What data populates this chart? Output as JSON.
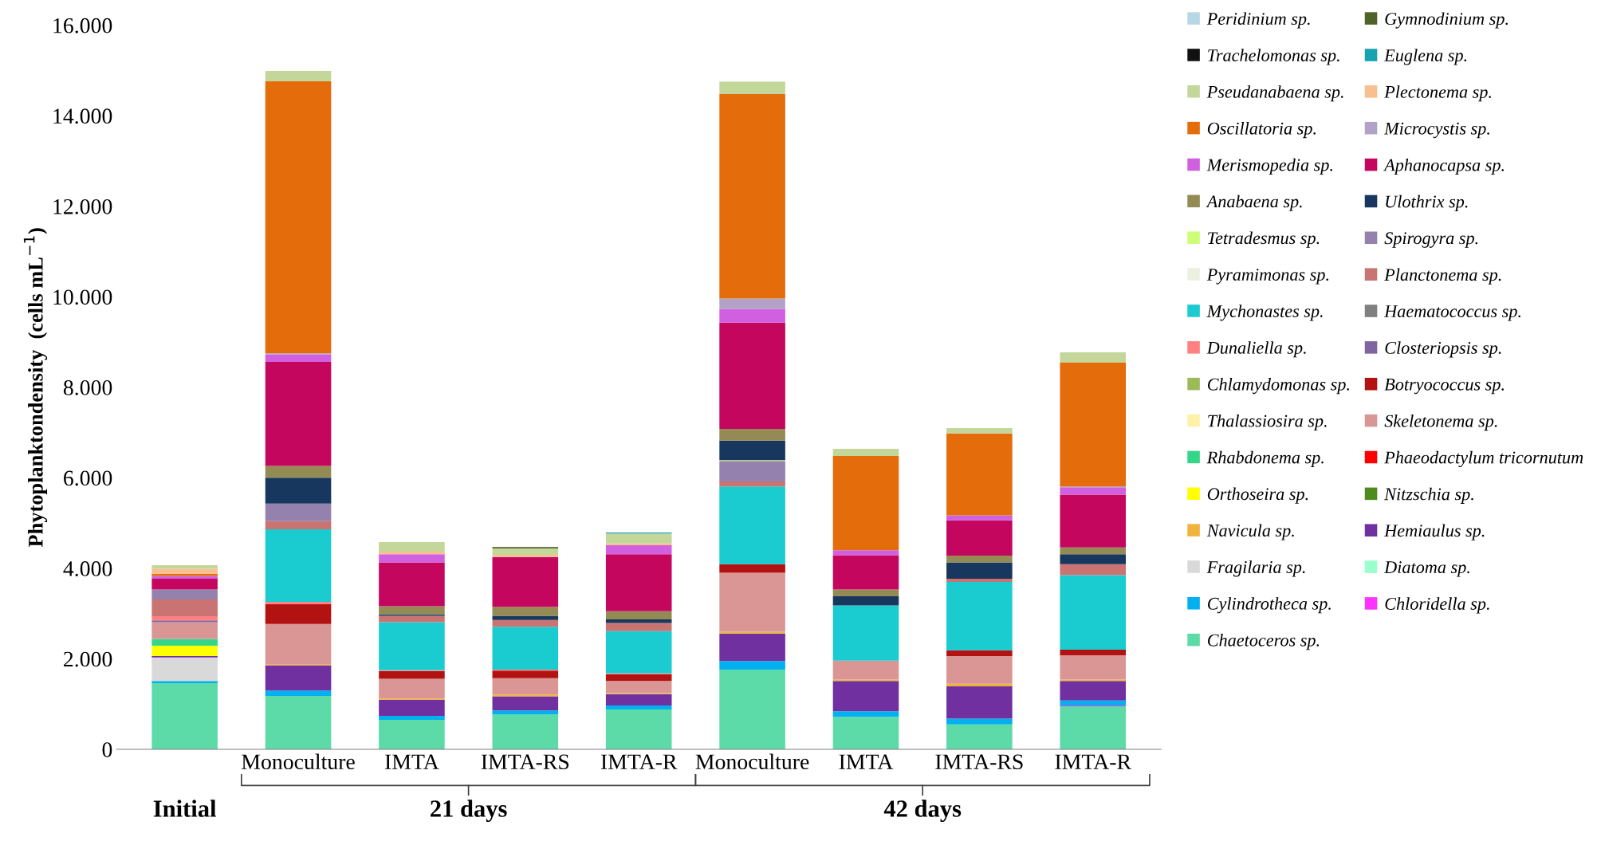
{
  "chart_data": {
    "type": "bar",
    "stacked": true,
    "categories": [
      null,
      "Monoculture",
      "IMTA",
      "IMTA-RS",
      "IMTA-R",
      "Monoculture",
      "IMTA",
      "IMTA-RS",
      "IMTA-R"
    ],
    "ylabel": "Phytoplanktondensity  (cells mL$^{−1}$)",
    "ylim": [
      0,
      16000
    ],
    "yticks": [
      0,
      {
        "value": 2000,
        "label": "2.000"
      },
      {
        "value": 4000,
        "label": "4.000"
      },
      {
        "value": 6000,
        "label": "6.000"
      },
      {
        "value": 8000,
        "label": "8.000"
      },
      {
        "value": 10000,
        "label": "10.000"
      },
      {
        "value": 12000,
        "label": "12.000"
      },
      {
        "value": 14000,
        "label": "14.000"
      },
      {
        "value": 16000,
        "label": "16.000"
      }
    ],
    "annotations": [
      "Initial",
      "21 days",
      "42 days"
    ],
    "grid": false,
    "legend": "right",
    "series": [
      {
        "name": "Chaetoceros sp.",
        "color": "#5cdba8",
        "values": [
          1460,
          1180,
          650,
          770,
          880,
          1760,
          720,
          550,
          950
        ]
      },
      {
        "name": "Chloridella sp.",
        "color": "#ff33ff",
        "values": [
          0,
          0,
          0,
          0,
          0,
          0,
          0,
          0,
          20
        ]
      },
      {
        "name": "Cylindrotheca sp.",
        "color": "#00b0f0",
        "values": [
          50,
          120,
          90,
          90,
          90,
          190,
          120,
          130,
          110
        ]
      },
      {
        "name": "Diatoma sp.",
        "color": "#99ffcc",
        "values": [
          0,
          0,
          0,
          0,
          0,
          0,
          0,
          0,
          0
        ]
      },
      {
        "name": "Fragilaria sp.",
        "color": "#d9d9d9",
        "values": [
          520,
          0,
          0,
          0,
          0,
          0,
          0,
          0,
          0
        ]
      },
      {
        "name": "Hemiaulus sp.",
        "color": "#7030a0",
        "values": [
          30,
          550,
          350,
          310,
          250,
          610,
          670,
          710,
          430
        ]
      },
      {
        "name": "Navicula sp.",
        "color": "#f0b43c",
        "values": [
          0,
          20,
          30,
          40,
          20,
          40,
          30,
          60,
          30
        ]
      },
      {
        "name": "Nitzschia sp.",
        "color": "#4f8a1e",
        "values": [
          0,
          0,
          0,
          0,
          0,
          0,
          0,
          0,
          0
        ]
      },
      {
        "name": "Orthoseira sp.",
        "color": "#ffff00",
        "values": [
          230,
          0,
          0,
          0,
          0,
          0,
          0,
          0,
          0
        ]
      },
      {
        "name": "Phaeodactylum tricornutum",
        "color": "#ff0000",
        "values": [
          0,
          0,
          0,
          0,
          0,
          0,
          0,
          0,
          0
        ]
      },
      {
        "name": "Rhabdonema sp.",
        "color": "#35d68a",
        "values": [
          150,
          0,
          0,
          0,
          0,
          0,
          0,
          0,
          0
        ]
      },
      {
        "name": "Skeletonema sp.",
        "color": "#da9694",
        "values": [
          370,
          900,
          440,
          360,
          270,
          1300,
          420,
          610,
          540
        ]
      },
      {
        "name": "Thalassiosira sp.",
        "color": "#fff2a8",
        "values": [
          0,
          0,
          0,
          0,
          0,
          0,
          0,
          0,
          0
        ]
      },
      {
        "name": "Botryococcus sp.",
        "color": "#b31212",
        "values": [
          0,
          440,
          170,
          170,
          150,
          190,
          0,
          130,
          120
        ]
      },
      {
        "name": "Chlamydomonas sp.",
        "color": "#9bbb59",
        "values": [
          0,
          0,
          0,
          0,
          0,
          0,
          0,
          0,
          0
        ]
      },
      {
        "name": "Closteriopsis sp.",
        "color": "#8064a2",
        "values": [
          40,
          0,
          0,
          0,
          0,
          0,
          0,
          0,
          0
        ]
      },
      {
        "name": "Dunaliella sp.",
        "color": "#ff8080",
        "values": [
          90,
          50,
          20,
          20,
          20,
          0,
          0,
          0,
          0
        ]
      },
      {
        "name": "Haematococcus sp.",
        "color": "#808080",
        "values": [
          0,
          0,
          0,
          0,
          0,
          0,
          0,
          0,
          0
        ]
      },
      {
        "name": "Mychonastes sp.",
        "color": "#1acbd0",
        "values": [
          0,
          1600,
          1060,
          950,
          930,
          1720,
          1220,
          1510,
          1650
        ]
      },
      {
        "name": "Planctonema sp.",
        "color": "#c97372",
        "values": [
          370,
          180,
          140,
          150,
          180,
          110,
          0,
          70,
          240
        ]
      },
      {
        "name": "Pyramimonas sp.",
        "color": "#ebf1de",
        "values": [
          0,
          0,
          0,
          0,
          0,
          0,
          0,
          0,
          0
        ]
      },
      {
        "name": "Spirogyra sp.",
        "color": "#9481ad",
        "values": [
          220,
          390,
          0,
          0,
          0,
          450,
          0,
          0,
          0
        ]
      },
      {
        "name": "Tetradesmus sp.",
        "color": "#ccff77",
        "values": [
          0,
          0,
          0,
          0,
          0,
          20,
          0,
          0,
          0
        ]
      },
      {
        "name": "Ulothrix sp.",
        "color": "#17375e",
        "values": [
          0,
          570,
          30,
          90,
          80,
          430,
          200,
          360,
          220
        ]
      },
      {
        "name": "Anabaena sp.",
        "color": "#948a54",
        "values": [
          0,
          260,
          180,
          200,
          180,
          260,
          150,
          150,
          150
        ]
      },
      {
        "name": "Aphanocapsa sp.",
        "color": "#c4065f",
        "values": [
          240,
          2300,
          970,
          1100,
          1260,
          2350,
          760,
          780,
          1170
        ]
      },
      {
        "name": "Merismopedia sp.",
        "color": "#d060e0",
        "values": [
          60,
          170,
          180,
          0,
          200,
          300,
          110,
          110,
          160
        ]
      },
      {
        "name": "Microcystis sp.",
        "color": "#b3a2c7",
        "values": [
          0,
          20,
          0,
          0,
          0,
          230,
          0,
          0,
          20
        ]
      },
      {
        "name": "Oscillatoria sp.",
        "color": "#e46c0a",
        "values": [
          50,
          6010,
          0,
          0,
          0,
          4520,
          2080,
          1810,
          2740
        ]
      },
      {
        "name": "Plectonema sp.",
        "color": "#fabf8f",
        "values": [
          110,
          0,
          60,
          50,
          40,
          0,
          0,
          0,
          0
        ]
      },
      {
        "name": "Pseudanabaena sp.",
        "color": "#c4d79b",
        "values": [
          80,
          230,
          210,
          140,
          220,
          270,
          160,
          120,
          220
        ]
      },
      {
        "name": "Euglena sp.",
        "color": "#17a2b0",
        "values": [
          0,
          0,
          0,
          0,
          20,
          0,
          0,
          0,
          0
        ]
      },
      {
        "name": "Trachelomonas sp.",
        "color": "#111111",
        "values": [
          0,
          0,
          0,
          0,
          0,
          0,
          0,
          0,
          0
        ]
      },
      {
        "name": "Gymnodinium sp.",
        "color": "#4f6228",
        "values": [
          0,
          0,
          0,
          30,
          0,
          0,
          0,
          0,
          0
        ]
      },
      {
        "name": "Peridinium sp.",
        "color": "#b7d7e4",
        "values": [
          0,
          0,
          0,
          0,
          0,
          0,
          0,
          0,
          0
        ]
      }
    ]
  }
}
